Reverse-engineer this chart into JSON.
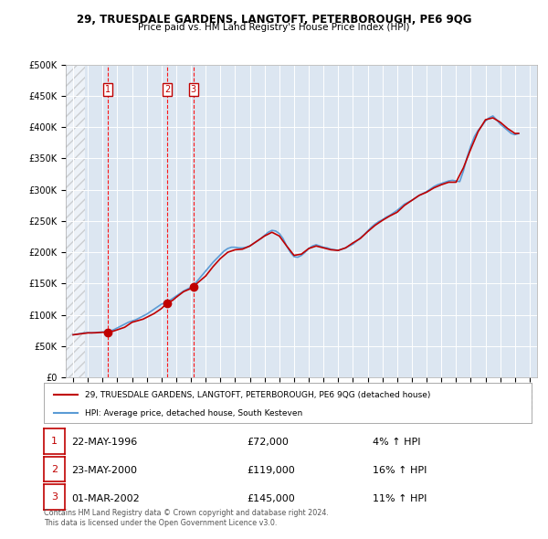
{
  "title": "29, TRUESDALE GARDENS, LANGTOFT, PETERBOROUGH, PE6 9QG",
  "subtitle": "Price paid vs. HM Land Registry's House Price Index (HPI)",
  "legend_line1": "29, TRUESDALE GARDENS, LANGTOFT, PETERBOROUGH, PE6 9QG (detached house)",
  "legend_line2": "HPI: Average price, detached house, South Kesteven",
  "footer1": "Contains HM Land Registry data © Crown copyright and database right 2024.",
  "footer2": "This data is licensed under the Open Government Licence v3.0.",
  "transactions": [
    {
      "num": 1,
      "date": "22-MAY-1996",
      "price": 72000,
      "pct": "4%",
      "dir": "↑",
      "year": 1996.38
    },
    {
      "num": 2,
      "date": "23-MAY-2000",
      "price": 119000,
      "pct": "16%",
      "dir": "↑",
      "year": 2000.38
    },
    {
      "num": 3,
      "date": "01-MAR-2002",
      "price": 145000,
      "pct": "11%",
      "dir": "↑",
      "year": 2002.17
    }
  ],
  "hpi_color": "#5b9bd5",
  "price_color": "#c00000",
  "vline_color": "#ff0000",
  "marker_color": "#c00000",
  "background_plot": "#dce6f1",
  "background_fig": "#ffffff",
  "grid_color": "#ffffff",
  "hpi_data": {
    "years": [
      1994.0,
      1994.25,
      1994.5,
      1994.75,
      1995.0,
      1995.25,
      1995.5,
      1995.75,
      1996.0,
      1996.25,
      1996.5,
      1996.75,
      1997.0,
      1997.25,
      1997.5,
      1997.75,
      1998.0,
      1998.25,
      1998.5,
      1998.75,
      1999.0,
      1999.25,
      1999.5,
      1999.75,
      2000.0,
      2000.25,
      2000.5,
      2000.75,
      2001.0,
      2001.25,
      2001.5,
      2001.75,
      2002.0,
      2002.25,
      2002.5,
      2002.75,
      2003.0,
      2003.25,
      2003.5,
      2003.75,
      2004.0,
      2004.25,
      2004.5,
      2004.75,
      2005.0,
      2005.25,
      2005.5,
      2005.75,
      2006.0,
      2006.25,
      2006.5,
      2006.75,
      2007.0,
      2007.25,
      2007.5,
      2007.75,
      2008.0,
      2008.25,
      2008.5,
      2008.75,
      2009.0,
      2009.25,
      2009.5,
      2009.75,
      2010.0,
      2010.25,
      2010.5,
      2010.75,
      2011.0,
      2011.25,
      2011.5,
      2011.75,
      2012.0,
      2012.25,
      2012.5,
      2012.75,
      2013.0,
      2013.25,
      2013.5,
      2013.75,
      2014.0,
      2014.25,
      2014.5,
      2014.75,
      2015.0,
      2015.25,
      2015.5,
      2015.75,
      2016.0,
      2016.25,
      2016.5,
      2016.75,
      2017.0,
      2017.25,
      2017.5,
      2017.75,
      2018.0,
      2018.25,
      2018.5,
      2018.75,
      2019.0,
      2019.25,
      2019.5,
      2019.75,
      2020.0,
      2020.25,
      2020.5,
      2020.75,
      2021.0,
      2021.25,
      2021.5,
      2021.75,
      2022.0,
      2022.25,
      2022.5,
      2022.75,
      2023.0,
      2023.25,
      2023.5,
      2023.75,
      2024.0,
      2024.25
    ],
    "values": [
      68000,
      69000,
      70000,
      71000,
      71500,
      71000,
      71500,
      72000,
      72500,
      73000,
      74000,
      76000,
      79000,
      82000,
      85000,
      88000,
      90000,
      92000,
      95000,
      98000,
      101000,
      105000,
      109000,
      113000,
      117000,
      119000,
      122000,
      126000,
      130000,
      134000,
      138000,
      141000,
      144000,
      149000,
      156000,
      163000,
      170000,
      177000,
      184000,
      190000,
      196000,
      202000,
      206000,
      208000,
      208000,
      207000,
      207000,
      208000,
      210000,
      214000,
      218000,
      222000,
      227000,
      232000,
      235000,
      234000,
      230000,
      222000,
      210000,
      200000,
      193000,
      192000,
      195000,
      200000,
      206000,
      210000,
      212000,
      210000,
      208000,
      207000,
      205000,
      204000,
      203000,
      205000,
      207000,
      210000,
      213000,
      218000,
      223000,
      228000,
      234000,
      240000,
      245000,
      249000,
      252000,
      256000,
      259000,
      263000,
      267000,
      272000,
      277000,
      280000,
      283000,
      287000,
      291000,
      294000,
      297000,
      301000,
      305000,
      308000,
      310000,
      312000,
      314000,
      315000,
      314000,
      313000,
      330000,
      352000,
      370000,
      385000,
      395000,
      402000,
      410000,
      415000,
      418000,
      412000,
      405000,
      400000,
      395000,
      390000,
      388000,
      390000
    ]
  },
  "price_data": {
    "years": [
      1994.0,
      1994.5,
      1995.0,
      1995.5,
      1996.0,
      1996.38,
      1996.75,
      1997.5,
      1998.0,
      1998.75,
      1999.5,
      2000.0,
      2000.38,
      2000.75,
      2001.0,
      2001.5,
      2002.0,
      2002.17,
      2002.5,
      2003.0,
      2003.5,
      2004.0,
      2004.5,
      2005.0,
      2005.5,
      2006.0,
      2006.5,
      2007.0,
      2007.5,
      2008.0,
      2008.5,
      2009.0,
      2009.5,
      2010.0,
      2010.5,
      2011.0,
      2011.5,
      2012.0,
      2012.5,
      2013.0,
      2013.5,
      2014.0,
      2014.5,
      2015.0,
      2015.5,
      2016.0,
      2016.5,
      2017.0,
      2017.5,
      2018.0,
      2018.5,
      2019.0,
      2019.5,
      2020.0,
      2020.5,
      2021.0,
      2021.5,
      2022.0,
      2022.5,
      2023.0,
      2023.5,
      2024.0,
      2024.25
    ],
    "values": [
      68000,
      69500,
      71000,
      71200,
      72000,
      72000,
      74000,
      80000,
      88000,
      93000,
      102000,
      110000,
      119000,
      123000,
      128000,
      137000,
      142000,
      145000,
      152000,
      162000,
      177000,
      190000,
      200000,
      204000,
      205000,
      210000,
      218000,
      226000,
      232000,
      226000,
      210000,
      195000,
      197000,
      206000,
      210000,
      207000,
      204000,
      203000,
      207000,
      215000,
      222000,
      233000,
      243000,
      251000,
      258000,
      264000,
      275000,
      283000,
      291000,
      296000,
      303000,
      308000,
      312000,
      312000,
      335000,
      365000,
      393000,
      412000,
      415000,
      408000,
      398000,
      390000,
      390000
    ]
  },
  "ylim": [
    0,
    500000
  ],
  "yticks": [
    0,
    50000,
    100000,
    150000,
    200000,
    250000,
    300000,
    350000,
    400000,
    450000,
    500000
  ],
  "xlim": [
    1993.5,
    2025.5
  ],
  "xticks": [
    1994,
    1995,
    1996,
    1997,
    1998,
    1999,
    2000,
    2001,
    2002,
    2003,
    2004,
    2005,
    2006,
    2007,
    2008,
    2009,
    2010,
    2011,
    2012,
    2013,
    2014,
    2015,
    2016,
    2017,
    2018,
    2019,
    2020,
    2021,
    2022,
    2023,
    2024,
    2025
  ]
}
